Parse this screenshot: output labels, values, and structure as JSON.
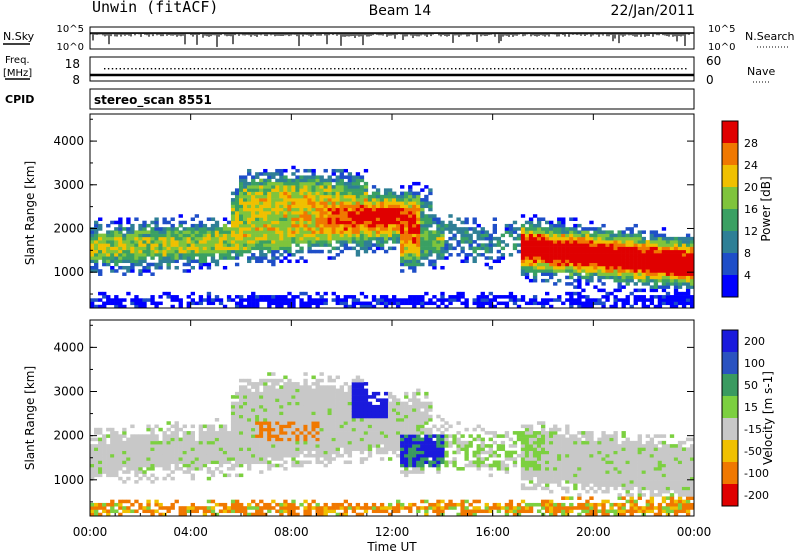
{
  "header": {
    "site": "Unwin (fitACF)",
    "beam": "Beam 14",
    "date": "22/Jan/2011"
  },
  "strips": {
    "nsky_label": "N.Sky",
    "nsearch_label": "N.Search",
    "nsky_ticks": [
      "10^5",
      "10^0"
    ],
    "nsearch_ticks": [
      "10^5",
      "10^0"
    ],
    "freq_label": "Freq.",
    "freq_unit": "[MHz]",
    "freq_ticks": [
      "18",
      "8"
    ],
    "nave_label": "Nave",
    "nave_ticks": [
      "60",
      "0"
    ],
    "cpid_label": "CPID",
    "cpid_value": "stereo_scan 8551"
  },
  "colors": {
    "power": [
      "#0000ff",
      "#1e4ec8",
      "#2e7f96",
      "#3aa063",
      "#7fc43c",
      "#f0c000",
      "#f07800",
      "#e00000"
    ],
    "velocity": [
      "#1a1adc",
      "#2a52c0",
      "#3a9a60",
      "#7cd040",
      "#c8c8c8",
      "#f0c000",
      "#f07800",
      "#e00000"
    ]
  },
  "chart_data": [
    {
      "type": "heatmap",
      "name": "power",
      "xlabel": "",
      "ylabel": "Slant Range [km]",
      "x_range": [
        "00:00",
        "00:00"
      ],
      "y_range_km": [
        180,
        4620
      ],
      "y_ticks": [
        "1000",
        "2000",
        "3000",
        "4000"
      ],
      "colorbar": {
        "label": "Power [dB]",
        "ticks": [
          "4",
          "8",
          "12",
          "16",
          "20",
          "24",
          "28"
        ],
        "range": [
          0,
          32
        ]
      }
    },
    {
      "type": "heatmap",
      "name": "velocity",
      "xlabel": "Time UT",
      "ylabel": "Slant Range [km]",
      "x_ticks": [
        "00:00",
        "04:00",
        "08:00",
        "12:00",
        "16:00",
        "20:00",
        "00:00"
      ],
      "y_range_km": [
        180,
        4620
      ],
      "y_ticks": [
        "1000",
        "2000",
        "3000",
        "4000"
      ],
      "colorbar": {
        "label": "Velocity [m s-1]",
        "ticks": [
          "200",
          "100",
          "50",
          "15",
          "-15",
          "-50",
          "-100",
          "-200"
        ],
        "range": [
          -250,
          250
        ]
      }
    }
  ]
}
